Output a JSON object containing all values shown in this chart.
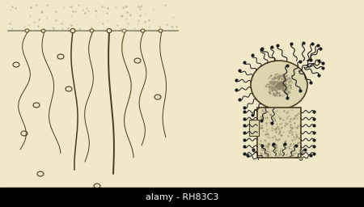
{
  "bg_color": "#f0e8c8",
  "bar_color": "#1a1a1a",
  "watermark_bg": "#000000",
  "watermark_text": "alamy - RH83C3",
  "watermark_text_color": "#ffffff",
  "fig_width": 4.5,
  "fig_height": 2.56,
  "dpi": 100
}
